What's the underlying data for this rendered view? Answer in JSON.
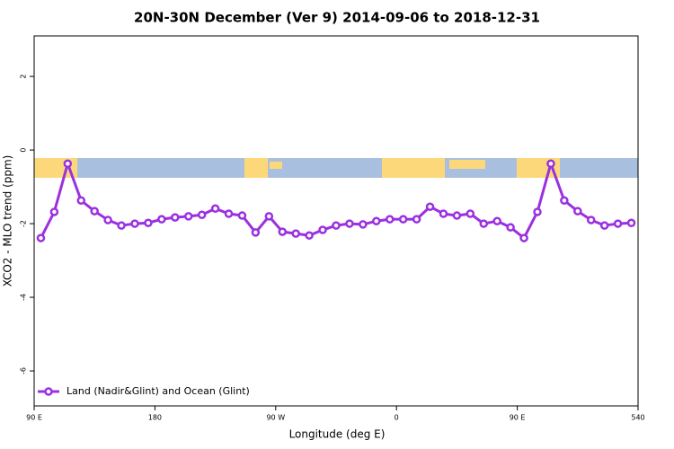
{
  "chart_data": {
    "type": "line",
    "title": "20N-30N December (Ver 9)   2014-09-06 to 2018-12-31",
    "x_label": "Longitude (deg E)",
    "y_label": "XCO2 - MLO trend (ppm)",
    "x": [
      95,
      105,
      115,
      125,
      135,
      145,
      155,
      165,
      175,
      185,
      195,
      205,
      215,
      225,
      235,
      245,
      255,
      265,
      275,
      285,
      295,
      305,
      315,
      325,
      335,
      345,
      355,
      365,
      375,
      385,
      395,
      405,
      415,
      425,
      435,
      445,
      455,
      465,
      475,
      485,
      495,
      505,
      515,
      525,
      535
    ],
    "series": [
      {
        "name": "Land (Nadir&Glint) and Ocean (Glint)",
        "color": "#9b30e0",
        "values": [
          -2.39,
          -1.68,
          -0.37,
          -1.37,
          -1.66,
          -1.9,
          -2.05,
          -2.0,
          -1.98,
          -1.88,
          -1.83,
          -1.8,
          -1.76,
          -1.59,
          -1.73,
          -1.78,
          -2.24,
          -1.8,
          -2.22,
          -2.27,
          -2.32,
          -2.17,
          -2.05,
          -2.0,
          -2.02,
          -1.93,
          -1.88,
          -1.88,
          -1.88,
          -1.54,
          -1.73,
          -1.78,
          -1.73,
          -2.0,
          -1.93,
          -2.1,
          -2.39,
          -1.68,
          -0.37,
          -1.37,
          -1.66,
          -1.9,
          -2.05,
          -2.0,
          -1.98
        ]
      }
    ],
    "xlim": [
      90,
      540
    ],
    "xticks": [
      {
        "value": 90,
        "label": "90 E"
      },
      180,
      {
        "value": 270,
        "label": "90 W"
      },
      {
        "value": 360,
        "label": "0"
      },
      {
        "value": 450,
        "label": "90 E"
      },
      540
    ],
    "ylim": [
      -6.95,
      3.1
    ],
    "yticks": [
      -6,
      -4,
      -2,
      0,
      2
    ],
    "legend": "bottom-left"
  }
}
